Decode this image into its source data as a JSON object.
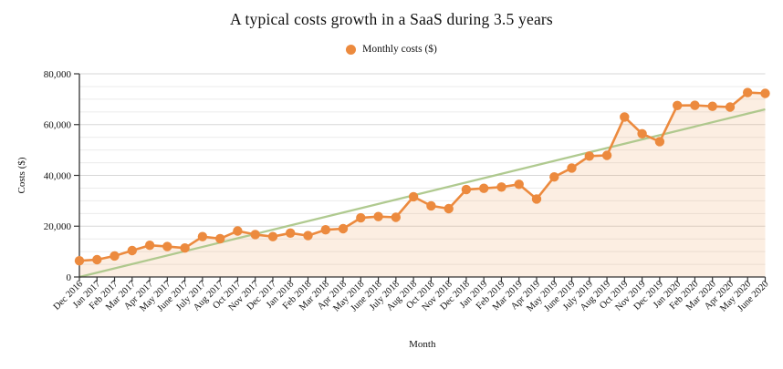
{
  "title": "A typical costs growth in a SaaS during 3.5 years",
  "legend": {
    "position": "top-center",
    "items": [
      {
        "label": "Monthly costs ($)",
        "marker": "circle-icon",
        "color": "#ec8a3e"
      }
    ]
  },
  "chart_data": {
    "type": "line",
    "title": "A typical costs growth in a SaaS during 3.5 years",
    "xlabel": "Month",
    "ylabel": "Costs ($)",
    "ylim": [
      0,
      80000
    ],
    "y_major_ticks": [
      0,
      20000,
      40000,
      60000,
      80000
    ],
    "y_minor_step": 5000,
    "grid": true,
    "legend_position": "top-center",
    "categories": [
      "Dec 2016",
      "Jan 2017",
      "Feb 2017",
      "Mar 2017",
      "Apr 2017",
      "May 2017",
      "June 2017",
      "July 2017",
      "Aug 2017",
      "Oct 2017",
      "Nov 2017",
      "Dec 2017",
      "Jan 2018",
      "Feb 2018",
      "Mar 2018",
      "Apr 2018",
      "May 2018",
      "June 2018",
      "July 2018",
      "Aug 2018",
      "Oct 2018",
      "Nov 2018",
      "Dec 2018",
      "Jan 2019",
      "Feb 2019",
      "Mar 2019",
      "Apr 2019",
      "May 2019",
      "June 2019",
      "July 2019",
      "Aug 2019",
      "Oct 2019",
      "Nov 2019",
      "Dec 2019",
      "Jan 2020",
      "Feb 2020",
      "Mar 2020",
      "Apr 2020",
      "May 2020",
      "June 2020"
    ],
    "series": [
      {
        "name": "Monthly costs ($)",
        "style": "line-markers-area",
        "color": "#ec8a3e",
        "area_fill": "rgba(236,138,62,0.15)",
        "values": [
          6400,
          6800,
          8300,
          10400,
          12500,
          12000,
          11400,
          15900,
          15100,
          18100,
          16700,
          15900,
          17300,
          16300,
          18600,
          19000,
          23300,
          23800,
          23500,
          31600,
          28000,
          26900,
          34400,
          34900,
          35400,
          36500,
          30700,
          39400,
          42900,
          47600,
          47900,
          63000,
          56400,
          53300,
          67500,
          67600,
          67200,
          66900,
          72600,
          72300
        ]
      }
    ],
    "trend_line": {
      "style": "straight-line",
      "color": "#a8c585",
      "start_value": 0,
      "end_value": 66000
    }
  },
  "colors": {
    "series_orange": "#ec8a3e",
    "trend_green": "#a8c585",
    "grid_minor": "#ebebeb",
    "grid_major": "#d7d7d7",
    "axis": "#333333",
    "text": "#111111",
    "background": "#ffffff"
  }
}
